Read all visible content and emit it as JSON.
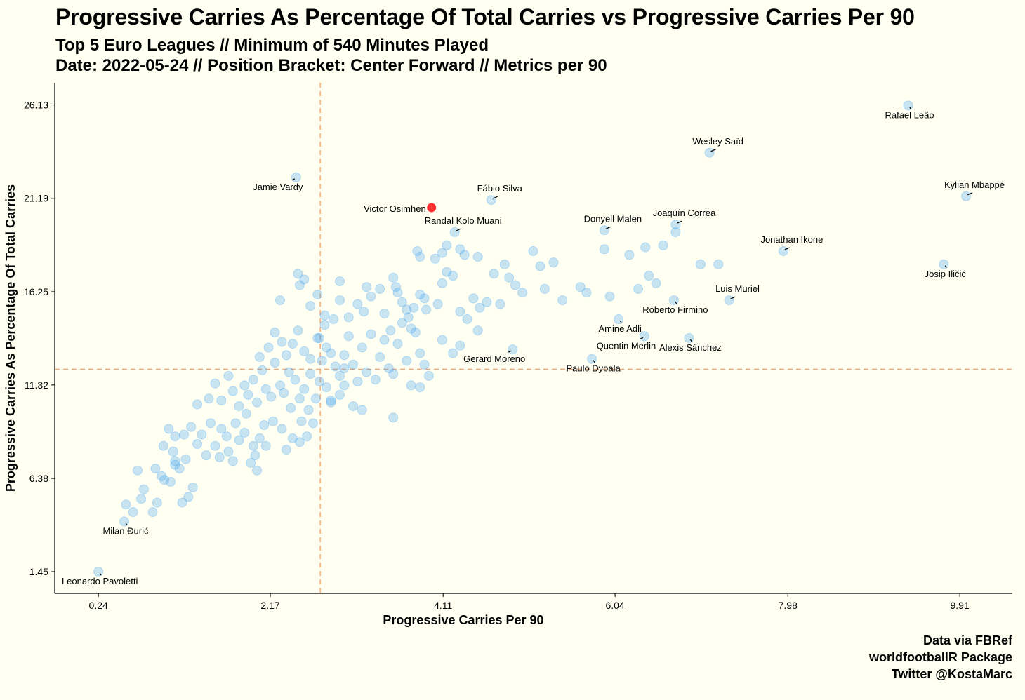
{
  "title": "Progressive Carries As Percentage Of Total Carries vs Progressive Carries Per 90",
  "subtitle_line1": "Top 5 Euro Leagues // Minimum of 540 Minutes Played",
  "subtitle_line2": "Date: 2022-05-24 // Position Bracket: Center Forward // Metrics per 90",
  "caption": [
    "Data via FBRef",
    "worldfootballR Package",
    "Twitter @KostaMarc"
  ],
  "colors": {
    "background": "#fffff2",
    "points": "#4da6f0",
    "highlight": "#ff1a1a",
    "reference_lines": "#f4a46a"
  },
  "chart_data": {
    "type": "scatter",
    "xlabel": "Progressive Carries Per 90",
    "ylabel": "Progressive Carries As Percentage Of Total Carries",
    "xlim": [
      -0.25,
      10.5
    ],
    "ylim": [
      0.3,
      27.3
    ],
    "x_ticks": [
      "0.24",
      "2.17",
      "4.11",
      "6.04",
      "7.98",
      "9.91"
    ],
    "y_ticks": [
      "1.45",
      "6.38",
      "11.32",
      "16.25",
      "21.19",
      "26.13"
    ],
    "x_reference_line": 2.73,
    "y_reference_line": 12.15,
    "grid": false,
    "highlight": {
      "name": "Victor Osimhen",
      "x": 3.98,
      "y": 20.7
    },
    "labeled_points": [
      {
        "name": "Rafael Leão",
        "x": 9.33,
        "y": 26.1,
        "pos": "below"
      },
      {
        "name": "Wesley Saïd",
        "x": 7.1,
        "y": 23.6,
        "pos": "above"
      },
      {
        "name": "Jamie Vardy",
        "x": 2.46,
        "y": 22.3,
        "pos": "below-left"
      },
      {
        "name": "Fábio Silva",
        "x": 4.65,
        "y": 21.1,
        "pos": "above"
      },
      {
        "name": "Kylian Mbappé",
        "x": 9.98,
        "y": 21.3,
        "pos": "above"
      },
      {
        "name": "Randal Kolo Muani",
        "x": 4.24,
        "y": 19.4,
        "pos": "above"
      },
      {
        "name": "Donyell Malen",
        "x": 5.92,
        "y": 19.5,
        "pos": "above"
      },
      {
        "name": "Joaquín Correa",
        "x": 6.72,
        "y": 19.8,
        "pos": "above"
      },
      {
        "name": "Jonathan Ikone",
        "x": 7.93,
        "y": 18.4,
        "pos": "above"
      },
      {
        "name": "Josip Iličić",
        "x": 9.73,
        "y": 17.7,
        "pos": "below"
      },
      {
        "name": "Luis Muriel",
        "x": 7.32,
        "y": 15.8,
        "pos": "above"
      },
      {
        "name": "Roberto Firmino",
        "x": 6.7,
        "y": 15.8,
        "pos": "below"
      },
      {
        "name": "Amine Adli",
        "x": 6.08,
        "y": 14.8,
        "pos": "below"
      },
      {
        "name": "Quentin Merlin",
        "x": 6.37,
        "y": 13.9,
        "pos": "below-left"
      },
      {
        "name": "Alexis Sánchez",
        "x": 6.87,
        "y": 13.8,
        "pos": "below"
      },
      {
        "name": "Gerard Moreno",
        "x": 4.89,
        "y": 13.2,
        "pos": "below-left"
      },
      {
        "name": "Paulo Dybala",
        "x": 5.78,
        "y": 12.7,
        "pos": "below"
      },
      {
        "name": "Milan Đurić",
        "x": 0.53,
        "y": 4.1,
        "pos": "below"
      },
      {
        "name": "Leonardo Pavoletti",
        "x": 0.24,
        "y": 1.45,
        "pos": "below"
      }
    ],
    "other_points": [
      [
        0.55,
        5.0
      ],
      [
        0.63,
        4.6
      ],
      [
        0.72,
        5.3
      ],
      [
        0.75,
        5.8
      ],
      [
        0.85,
        4.6
      ],
      [
        0.9,
        5.1
      ],
      [
        0.68,
        6.8
      ],
      [
        0.88,
        6.9
      ],
      [
        0.95,
        6.5
      ],
      [
        0.98,
        6.3
      ],
      [
        1.05,
        6.2
      ],
      [
        1.1,
        7.3
      ],
      [
        1.18,
        5.1
      ],
      [
        1.25,
        5.4
      ],
      [
        1.3,
        5.9
      ],
      [
        0.97,
        8.1
      ],
      [
        1.08,
        7.8
      ],
      [
        1.1,
        7.1
      ],
      [
        1.15,
        6.9
      ],
      [
        1.2,
        8.7
      ],
      [
        1.22,
        7.4
      ],
      [
        1.03,
        9.0
      ],
      [
        1.1,
        8.6
      ],
      [
        1.28,
        9.1
      ],
      [
        1.35,
        8.2
      ],
      [
        1.4,
        8.7
      ],
      [
        1.45,
        7.6
      ],
      [
        1.5,
        9.3
      ],
      [
        1.55,
        8.1
      ],
      [
        1.6,
        7.5
      ],
      [
        1.62,
        9.0
      ],
      [
        1.68,
        8.6
      ],
      [
        1.7,
        7.8
      ],
      [
        1.75,
        7.3
      ],
      [
        1.78,
        9.3
      ],
      [
        1.82,
        8.4
      ],
      [
        1.88,
        8.8
      ],
      [
        1.9,
        9.8
      ],
      [
        1.95,
        7.2
      ],
      [
        1.98,
        8.1
      ],
      [
        2.02,
        6.8
      ],
      [
        2.05,
        8.5
      ],
      [
        2.1,
        9.2
      ],
      [
        1.35,
        10.3
      ],
      [
        1.48,
        10.6
      ],
      [
        1.55,
        11.4
      ],
      [
        1.62,
        10.5
      ],
      [
        1.7,
        11.8
      ],
      [
        1.75,
        11.0
      ],
      [
        1.82,
        10.2
      ],
      [
        1.88,
        11.3
      ],
      [
        1.92,
        10.8
      ],
      [
        1.98,
        11.6
      ],
      [
        2.02,
        10.4
      ],
      [
        2.08,
        12.1
      ],
      [
        2.12,
        11.1
      ],
      [
        2.18,
        10.7
      ],
      [
        2.22,
        12.5
      ],
      [
        2.28,
        11.3
      ],
      [
        2.32,
        10.9
      ],
      [
        2.38,
        12.0
      ],
      [
        2.4,
        10.1
      ],
      [
        2.45,
        11.6
      ],
      [
        2.5,
        10.6
      ],
      [
        2.55,
        11.1
      ],
      [
        2.6,
        10.0
      ],
      [
        2.62,
        11.9
      ],
      [
        2.68,
        10.6
      ],
      [
        2.72,
        11.5
      ],
      [
        2.75,
        12.6
      ],
      [
        2.8,
        11.2
      ],
      [
        2.85,
        10.4
      ],
      [
        2.2,
        9.4
      ],
      [
        2.3,
        9.0
      ],
      [
        2.42,
        8.5
      ],
      [
        2.52,
        9.4
      ],
      [
        2.58,
        8.6
      ],
      [
        2.12,
        8.1
      ],
      [
        2.35,
        7.9
      ],
      [
        2.0,
        7.6
      ],
      [
        2.05,
        12.8
      ],
      [
        2.15,
        13.3
      ],
      [
        2.22,
        14.1
      ],
      [
        2.3,
        13.6
      ],
      [
        2.35,
        12.9
      ],
      [
        2.42,
        13.5
      ],
      [
        2.48,
        14.2
      ],
      [
        2.55,
        13.1
      ],
      [
        2.62,
        12.7
      ],
      [
        2.7,
        13.8
      ],
      [
        2.78,
        14.5
      ],
      [
        2.85,
        13.0
      ],
      [
        2.9,
        12.3
      ],
      [
        2.95,
        11.8
      ],
      [
        3.0,
        12.9
      ],
      [
        3.05,
        13.9
      ],
      [
        3.1,
        12.4
      ],
      [
        3.15,
        11.5
      ],
      [
        3.2,
        13.3
      ],
      [
        3.25,
        12.0
      ],
      [
        3.3,
        14.0
      ],
      [
        3.35,
        11.6
      ],
      [
        3.4,
        12.8
      ],
      [
        3.45,
        13.7
      ],
      [
        3.5,
        12.2
      ],
      [
        3.55,
        11.9
      ],
      [
        3.6,
        13.5
      ],
      [
        3.65,
        14.6
      ],
      [
        3.7,
        12.6
      ],
      [
        3.75,
        11.3
      ],
      [
        3.8,
        14.1
      ],
      [
        3.85,
        13.0
      ],
      [
        3.9,
        12.4
      ],
      [
        3.95,
        11.8
      ],
      [
        2.28,
        15.8
      ],
      [
        2.5,
        16.6
      ],
      [
        2.62,
        15.5
      ],
      [
        2.78,
        15.0
      ],
      [
        2.88,
        14.8
      ],
      [
        2.95,
        15.8
      ],
      [
        3.05,
        14.9
      ],
      [
        3.15,
        15.6
      ],
      [
        3.22,
        15.2
      ],
      [
        3.3,
        16.0
      ],
      [
        3.4,
        16.4
      ],
      [
        3.45,
        15.1
      ],
      [
        3.52,
        14.2
      ],
      [
        3.58,
        16.5
      ],
      [
        3.65,
        15.7
      ],
      [
        3.72,
        14.9
      ],
      [
        3.78,
        15.4
      ],
      [
        3.85,
        16.1
      ],
      [
        3.92,
        15.3
      ],
      [
        2.48,
        17.2
      ],
      [
        2.55,
        16.9
      ],
      [
        2.7,
        16.1
      ],
      [
        2.95,
        16.8
      ],
      [
        3.25,
        16.5
      ],
      [
        3.55,
        17.0
      ],
      [
        3.6,
        16.2
      ],
      [
        3.7,
        15.3
      ],
      [
        3.75,
        14.3
      ],
      [
        3.82,
        18.4
      ],
      [
        3.85,
        18.1
      ],
      [
        3.9,
        15.9
      ],
      [
        4.05,
        15.6
      ],
      [
        4.1,
        16.7
      ],
      [
        4.15,
        17.3
      ],
      [
        4.22,
        17.1
      ],
      [
        4.3,
        15.2
      ],
      [
        4.38,
        14.8
      ],
      [
        4.45,
        15.9
      ],
      [
        4.52,
        15.4
      ],
      [
        4.6,
        15.7
      ],
      [
        4.68,
        17.2
      ],
      [
        4.75,
        15.6
      ],
      [
        4.85,
        17.0
      ],
      [
        4.92,
        16.6
      ],
      [
        5.0,
        16.2
      ],
      [
        5.12,
        18.4
      ],
      [
        5.2,
        17.6
      ],
      [
        5.25,
        16.4
      ],
      [
        5.35,
        17.8
      ],
      [
        5.45,
        15.8
      ],
      [
        5.65,
        16.5
      ],
      [
        5.72,
        16.2
      ],
      [
        5.92,
        18.5
      ],
      [
        5.98,
        16.0
      ],
      [
        6.2,
        18.2
      ],
      [
        6.3,
        16.4
      ],
      [
        6.38,
        18.6
      ],
      [
        6.42,
        17.1
      ],
      [
        6.5,
        16.7
      ],
      [
        6.58,
        18.7
      ],
      [
        6.72,
        19.4
      ],
      [
        7.0,
        17.7
      ],
      [
        7.2,
        17.7
      ],
      [
        4.02,
        18.0
      ],
      [
        4.1,
        18.3
      ],
      [
        4.15,
        18.7
      ],
      [
        4.3,
        18.5
      ],
      [
        4.35,
        18.2
      ],
      [
        4.5,
        18.1
      ],
      [
        4.8,
        17.7
      ],
      [
        4.1,
        13.7
      ],
      [
        4.22,
        13.0
      ],
      [
        4.3,
        13.4
      ],
      [
        4.5,
        14.2
      ],
      [
        3.1,
        10.2
      ],
      [
        3.2,
        10.0
      ],
      [
        3.55,
        9.6
      ],
      [
        3.85,
        11.2
      ],
      [
        2.65,
        9.3
      ],
      [
        2.5,
        8.3
      ],
      [
        2.85,
        10.5
      ],
      [
        2.95,
        10.8
      ],
      [
        3.0,
        11.3
      ],
      [
        2.72,
        13.8
      ],
      [
        2.8,
        13.3
      ],
      [
        3.0,
        12.2
      ]
    ]
  }
}
